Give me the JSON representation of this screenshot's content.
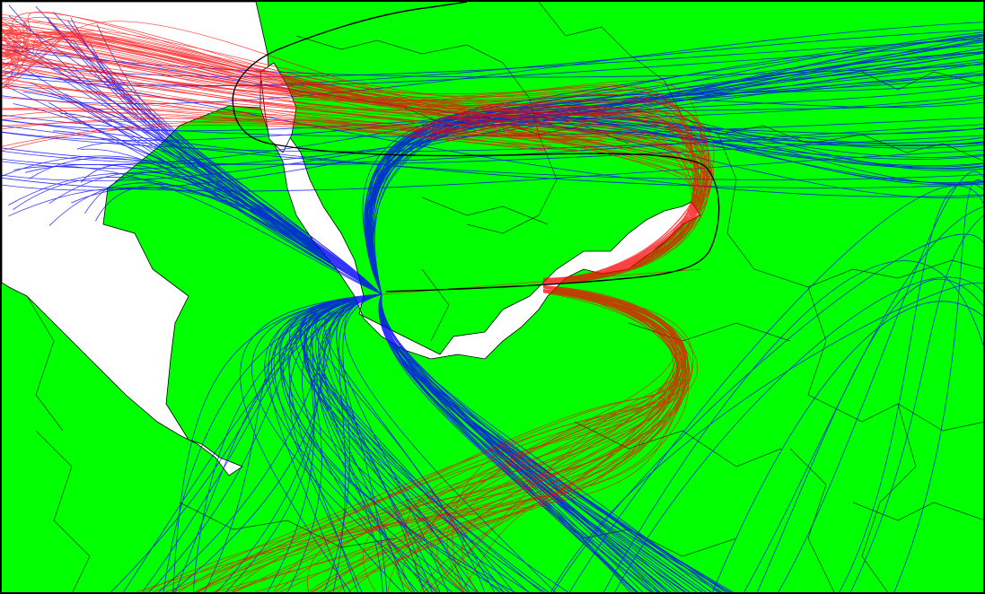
{
  "map": {
    "land_color": "#00ff00",
    "water_color": "#ffffff",
    "boundary_color": "#000000",
    "frame_color": "#000000"
  },
  "legend_colors": {
    "departure_tracks": "#0000ff",
    "arrival_tracks": "#ff0000",
    "procedure_track": "#000000"
  },
  "visible_text": []
}
